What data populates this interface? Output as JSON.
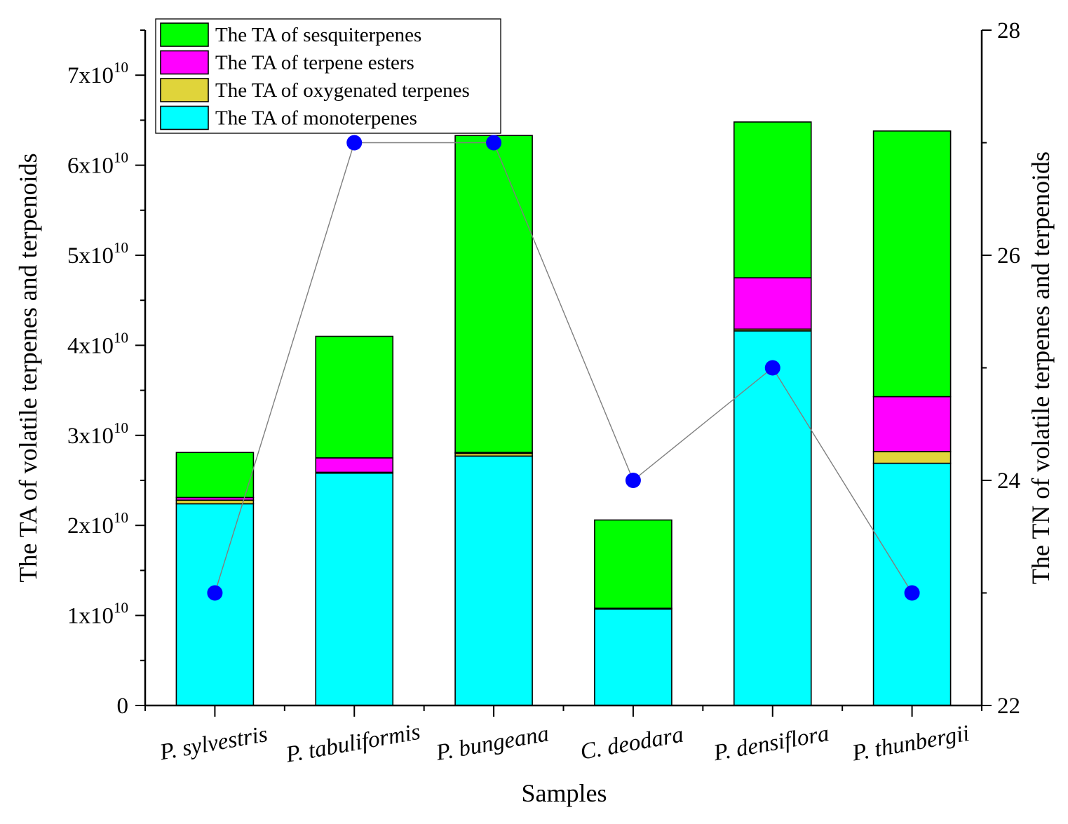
{
  "chart_data": {
    "type": "bar",
    "stacked": true,
    "title": "",
    "xlabel": "Samples",
    "ylabel": "The TA of volatile terpenes and terpenoids",
    "y2label": "The TN of volatile terpenes and terpenoids",
    "ylim": [
      0,
      75000000000
    ],
    "y2lim": [
      22,
      28
    ],
    "categories": [
      "P. sylvestris",
      "P. tabuliformis",
      "P. bungeana",
      "C. deodara",
      "P. densiflora",
      "P. thunbergii"
    ],
    "y_ticks": [
      {
        "value": 0,
        "base": "0",
        "exp": ""
      },
      {
        "value": 10000000000,
        "base": "1x10",
        "exp": "10"
      },
      {
        "value": 20000000000,
        "base": "2x10",
        "exp": "10"
      },
      {
        "value": 30000000000,
        "base": "3x10",
        "exp": "10"
      },
      {
        "value": 40000000000,
        "base": "4x10",
        "exp": "10"
      },
      {
        "value": 50000000000,
        "base": "5x10",
        "exp": "10"
      },
      {
        "value": 60000000000,
        "base": "6x10",
        "exp": "10"
      },
      {
        "value": 70000000000,
        "base": "7x10",
        "exp": "10"
      }
    ],
    "y2_ticks": [
      22,
      24,
      26,
      28
    ],
    "series": [
      {
        "name": "The TA of monoterpenes",
        "color": "#00ffff",
        "values": [
          22400000000,
          25800000000,
          27700000000,
          10700000000,
          41600000000,
          26900000000
        ]
      },
      {
        "name": "The TA of oxygenated terpenes",
        "color": "#e0d43a",
        "values": [
          400000000,
          100000000,
          300000000,
          100000000,
          200000000,
          1300000000
        ]
      },
      {
        "name": "The TA of terpene esters",
        "color": "#ff00ff",
        "values": [
          300000000,
          1600000000,
          100000000,
          0,
          5700000000,
          6100000000
        ]
      },
      {
        "name": "The TA of sesquiterpenes",
        "color": "#00ff00",
        "values": [
          5000000000,
          13500000000,
          35200000000,
          9800000000,
          17300000000,
          29500000000
        ]
      }
    ],
    "line_series": {
      "name": "TN",
      "color": "#0000ff",
      "values": [
        23,
        27,
        27,
        24,
        25,
        23
      ]
    },
    "legend_order": [
      "The TA of sesquiterpenes",
      "The TA of terpene esters",
      "The TA of oxygenated terpenes",
      "The TA of monoterpenes"
    ],
    "legend_position": "top-left"
  }
}
